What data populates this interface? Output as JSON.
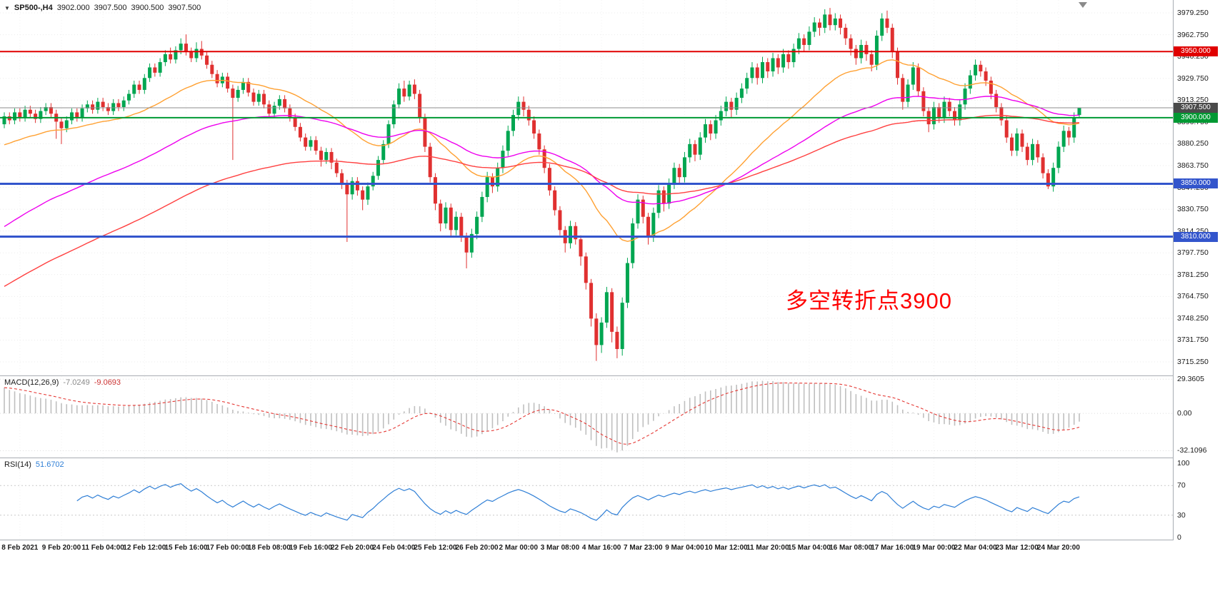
{
  "header": {
    "menu_icon": "▼",
    "title": "SP500-,H4",
    "open": "3902.000",
    "high": "3907.500",
    "low": "3900.500",
    "close": "3907.500"
  },
  "annotation": {
    "text": "多空转折点3900",
    "color": "#FF0000"
  },
  "price_axis": {
    "scale_labels": [
      3979.25,
      3962.75,
      3946.25,
      3929.75,
      3913.25,
      3896.75,
      3880.25,
      3863.75,
      3847.25,
      3830.75,
      3814.25,
      3797.75,
      3781.25,
      3764.75,
      3748.25,
      3731.75,
      3715.25
    ]
  },
  "chart_data": {
    "type": "candlestick",
    "symbol": "SP500-",
    "timeframe": "H4",
    "current_ohlc": {
      "open": 3902.0,
      "high": 3907.5,
      "low": 3900.5,
      "close": 3907.5
    },
    "price_scale": {
      "ylim_top": 3989,
      "ylim_bottom": 3705
    },
    "colors": {
      "up": "#00A651",
      "down": "#E03030",
      "grid_h": "#ebebeb",
      "grid_v": "#f2f2f2",
      "bg": "#ffffff"
    },
    "levels": [
      {
        "price": 3950,
        "label": "3950.000",
        "color": "#E00000",
        "thickness": 2
      },
      {
        "price": 3900,
        "label": "3900.000",
        "color": "#009933",
        "thickness": 2
      },
      {
        "price": 3850,
        "label": "3850.000",
        "color": "#3355CC",
        "thickness": 3
      },
      {
        "price": 3810,
        "label": "3810.000",
        "color": "#3355CC",
        "thickness": 3
      }
    ],
    "bid": {
      "price": 3907.5,
      "label": "3907.500",
      "line_color": "#8c8c8c",
      "tag_color": "#4a4a4a"
    },
    "moving_averages": [
      {
        "name": "MA-fast-orange",
        "period": 30,
        "seed": 3878,
        "color": "#FFA133"
      },
      {
        "name": "MA-mid-magenta",
        "period": 65,
        "seed": 3815,
        "color": "#EE00EE"
      },
      {
        "name": "MA-slow-red",
        "period": 110,
        "seed": 3770,
        "color": "#FF4040"
      }
    ],
    "macd": {
      "name": "MACD(12,26,9)",
      "value_main": "-7.0249",
      "value_signal": "-9.0693",
      "params": [
        12,
        26,
        9
      ],
      "seed_fast": 3902,
      "seed_slow": 3878,
      "range": [
        -38,
        32
      ],
      "axis_values": [
        29.3605,
        0,
        -32.1096
      ],
      "axis_labels": [
        "29.3605",
        "0.00",
        "-32.1096"
      ],
      "histogram_color": "#bfbfbf",
      "signal_color": "#E53935"
    },
    "rsi": {
      "name": "RSI(14)",
      "value": "51.6702",
      "period": 14,
      "range": [
        0,
        100
      ],
      "levels": [
        70,
        30
      ],
      "axis_values": [
        100,
        70,
        30,
        0
      ],
      "axis_labels": [
        "100",
        "70",
        "30",
        "0"
      ],
      "line_color": "#2f7fd6",
      "level_color": "#c9c9c9"
    },
    "time_labels": [
      "8 Feb 2021",
      "9 Feb 20:00",
      "11 Feb 04:00",
      "12 Feb 12:00",
      "15 Feb 16:00",
      "17 Feb 00:00",
      "18 Feb 08:00",
      "19 Feb 16:00",
      "22 Feb 20:00",
      "24 Feb 04:00",
      "25 Feb 12:00",
      "26 Feb 20:00",
      "2 Mar 00:00",
      "3 Mar 08:00",
      "4 Mar 16:00",
      "7 Mar 23:00",
      "9 Mar 04:00",
      "10 Mar 12:00",
      "11 Mar 20:00",
      "15 Mar 04:00",
      "16 Mar 08:00",
      "17 Mar 16:00",
      "19 Mar 00:00",
      "22 Mar 04:00",
      "23 Mar 12:00",
      "24 Mar 20:00"
    ],
    "candles_per_time_label": 8,
    "first_label_candle_index": 3,
    "candles": [
      [
        3895,
        3904,
        3892,
        3901
      ],
      [
        3901,
        3904,
        3895,
        3898
      ],
      [
        3898,
        3907,
        3895,
        3904
      ],
      [
        3904,
        3907,
        3897,
        3900
      ],
      [
        3900,
        3909,
        3897,
        3906
      ],
      [
        3906,
        3909,
        3900,
        3903
      ],
      [
        3903,
        3906,
        3896,
        3899
      ],
      [
        3899,
        3908,
        3896,
        3905
      ],
      [
        3905,
        3911,
        3902,
        3908
      ],
      [
        3908,
        3911,
        3900,
        3903
      ],
      [
        3903,
        3906,
        3884,
        3897
      ],
      [
        3897,
        3900,
        3880,
        3892
      ],
      [
        3892,
        3901,
        3889,
        3898
      ],
      [
        3898,
        3907,
        3895,
        3904
      ],
      [
        3904,
        3907,
        3897,
        3900
      ],
      [
        3900,
        3910,
        3897,
        3907
      ],
      [
        3907,
        3913,
        3904,
        3910
      ],
      [
        3910,
        3913,
        3903,
        3906
      ],
      [
        3906,
        3915,
        3903,
        3912
      ],
      [
        3912,
        3915,
        3905,
        3908
      ],
      [
        3908,
        3911,
        3902,
        3905
      ],
      [
        3905,
        3914,
        3902,
        3911
      ],
      [
        3911,
        3914,
        3905,
        3908
      ],
      [
        3908,
        3916,
        3905,
        3913
      ],
      [
        3913,
        3921,
        3910,
        3918
      ],
      [
        3918,
        3928,
        3915,
        3925
      ],
      [
        3925,
        3928,
        3918,
        3921
      ],
      [
        3921,
        3933,
        3918,
        3930
      ],
      [
        3930,
        3941,
        3927,
        3938
      ],
      [
        3938,
        3941,
        3931,
        3934
      ],
      [
        3934,
        3945,
        3931,
        3942
      ],
      [
        3942,
        3951,
        3939,
        3948
      ],
      [
        3948,
        3953,
        3941,
        3944
      ],
      [
        3944,
        3954,
        3941,
        3951
      ],
      [
        3951,
        3960,
        3948,
        3956
      ],
      [
        3956,
        3963,
        3947,
        3950
      ],
      [
        3950,
        3953,
        3942,
        3945
      ],
      [
        3945,
        3957,
        3942,
        3952
      ],
      [
        3952,
        3958,
        3944,
        3947
      ],
      [
        3947,
        3950,
        3937,
        3940
      ],
      [
        3940,
        3943,
        3930,
        3933
      ],
      [
        3933,
        3936,
        3923,
        3926
      ],
      [
        3926,
        3934,
        3923,
        3931
      ],
      [
        3931,
        3934,
        3919,
        3922
      ],
      [
        3922,
        3925,
        3868,
        3915
      ],
      [
        3915,
        3924,
        3912,
        3921
      ],
      [
        3921,
        3930,
        3918,
        3927
      ],
      [
        3927,
        3930,
        3916,
        3919
      ],
      [
        3919,
        3922,
        3909,
        3912
      ],
      [
        3912,
        3921,
        3909,
        3918
      ],
      [
        3918,
        3921,
        3907,
        3910
      ],
      [
        3910,
        3913,
        3900,
        3903
      ],
      [
        3903,
        3912,
        3900,
        3909
      ],
      [
        3909,
        3917,
        3906,
        3914
      ],
      [
        3914,
        3917,
        3904,
        3907
      ],
      [
        3907,
        3910,
        3897,
        3900
      ],
      [
        3900,
        3903,
        3890,
        3893
      ],
      [
        3893,
        3896,
        3882,
        3885
      ],
      [
        3885,
        3888,
        3875,
        3878
      ],
      [
        3878,
        3886,
        3875,
        3883
      ],
      [
        3883,
        3886,
        3872,
        3875
      ],
      [
        3875,
        3878,
        3863,
        3868
      ],
      [
        3868,
        3877,
        3865,
        3874
      ],
      [
        3874,
        3877,
        3861,
        3866
      ],
      [
        3866,
        3869,
        3855,
        3858
      ],
      [
        3858,
        3861,
        3846,
        3850
      ],
      [
        3850,
        3853,
        3806,
        3842
      ],
      [
        3842,
        3855,
        3838,
        3852
      ],
      [
        3852,
        3855,
        3841,
        3845
      ],
      [
        3845,
        3848,
        3830,
        3838
      ],
      [
        3838,
        3851,
        3834,
        3848
      ],
      [
        3848,
        3859,
        3845,
        3856
      ],
      [
        3856,
        3871,
        3853,
        3868
      ],
      [
        3868,
        3883,
        3865,
        3880
      ],
      [
        3880,
        3898,
        3877,
        3895
      ],
      [
        3895,
        3913,
        3892,
        3910
      ],
      [
        3910,
        3926,
        3907,
        3922
      ],
      [
        3922,
        3928,
        3912,
        3916
      ],
      [
        3916,
        3928,
        3913,
        3925
      ],
      [
        3925,
        3929,
        3914,
        3918
      ],
      [
        3918,
        3921,
        3896,
        3900
      ],
      [
        3900,
        3903,
        3874,
        3878
      ],
      [
        3878,
        3881,
        3851,
        3855
      ],
      [
        3855,
        3858,
        3830,
        3835
      ],
      [
        3835,
        3838,
        3814,
        3820
      ],
      [
        3820,
        3836,
        3816,
        3832
      ],
      [
        3832,
        3835,
        3810,
        3815
      ],
      [
        3815,
        3829,
        3811,
        3825
      ],
      [
        3825,
        3828,
        3806,
        3810
      ],
      [
        3810,
        3813,
        3786,
        3798
      ],
      [
        3798,
        3816,
        3794,
        3812
      ],
      [
        3812,
        3829,
        3808,
        3825
      ],
      [
        3825,
        3844,
        3821,
        3840
      ],
      [
        3840,
        3859,
        3836,
        3855
      ],
      [
        3855,
        3858,
        3843,
        3848
      ],
      [
        3848,
        3866,
        3844,
        3862
      ],
      [
        3862,
        3879,
        3858,
        3875
      ],
      [
        3875,
        3894,
        3871,
        3890
      ],
      [
        3890,
        3906,
        3886,
        3902
      ],
      [
        3902,
        3916,
        3898,
        3912
      ],
      [
        3912,
        3916,
        3901,
        3906
      ],
      [
        3906,
        3909,
        3894,
        3898
      ],
      [
        3898,
        3901,
        3884,
        3888
      ],
      [
        3888,
        3891,
        3872,
        3876
      ],
      [
        3876,
        3879,
        3858,
        3862
      ],
      [
        3862,
        3865,
        3841,
        3845
      ],
      [
        3845,
        3848,
        3826,
        3830
      ],
      [
        3830,
        3833,
        3811,
        3815
      ],
      [
        3815,
        3818,
        3798,
        3805
      ],
      [
        3805,
        3822,
        3801,
        3818
      ],
      [
        3818,
        3821,
        3804,
        3808
      ],
      [
        3808,
        3811,
        3788,
        3795
      ],
      [
        3795,
        3798,
        3770,
        3775
      ],
      [
        3775,
        3778,
        3742,
        3748
      ],
      [
        3748,
        3752,
        3716,
        3728
      ],
      [
        3728,
        3749,
        3722,
        3745
      ],
      [
        3745,
        3772,
        3741,
        3768
      ],
      [
        3768,
        3771,
        3730,
        3738
      ],
      [
        3738,
        3742,
        3718,
        3725
      ],
      [
        3725,
        3764,
        3720,
        3760
      ],
      [
        3760,
        3794,
        3756,
        3790
      ],
      [
        3790,
        3824,
        3786,
        3820
      ],
      [
        3820,
        3842,
        3816,
        3838
      ],
      [
        3838,
        3841,
        3820,
        3825
      ],
      [
        3825,
        3828,
        3804,
        3810
      ],
      [
        3810,
        3832,
        3806,
        3828
      ],
      [
        3828,
        3849,
        3824,
        3845
      ],
      [
        3845,
        3848,
        3829,
        3835
      ],
      [
        3835,
        3854,
        3831,
        3850
      ],
      [
        3850,
        3866,
        3846,
        3862
      ],
      [
        3862,
        3865,
        3850,
        3855
      ],
      [
        3855,
        3874,
        3851,
        3870
      ],
      [
        3870,
        3884,
        3866,
        3880
      ],
      [
        3880,
        3883,
        3867,
        3872
      ],
      [
        3872,
        3889,
        3868,
        3885
      ],
      [
        3885,
        3899,
        3881,
        3895
      ],
      [
        3895,
        3898,
        3883,
        3888
      ],
      [
        3888,
        3902,
        3884,
        3898
      ],
      [
        3898,
        3909,
        3894,
        3905
      ],
      [
        3905,
        3916,
        3901,
        3912
      ],
      [
        3912,
        3915,
        3900,
        3906
      ],
      [
        3906,
        3919,
        3902,
        3915
      ],
      [
        3915,
        3926,
        3911,
        3922
      ],
      [
        3922,
        3934,
        3918,
        3930
      ],
      [
        3930,
        3942,
        3926,
        3938
      ],
      [
        3938,
        3941,
        3925,
        3930
      ],
      [
        3930,
        3946,
        3926,
        3942
      ],
      [
        3942,
        3945,
        3930,
        3935
      ],
      [
        3935,
        3949,
        3931,
        3945
      ],
      [
        3945,
        3948,
        3933,
        3938
      ],
      [
        3938,
        3952,
        3934,
        3948
      ],
      [
        3948,
        3951,
        3937,
        3942
      ],
      [
        3942,
        3956,
        3938,
        3952
      ],
      [
        3952,
        3964,
        3948,
        3960
      ],
      [
        3960,
        3963,
        3950,
        3955
      ],
      [
        3955,
        3969,
        3951,
        3965
      ],
      [
        3965,
        3976,
        3961,
        3972
      ],
      [
        3972,
        3975,
        3962,
        3968
      ],
      [
        3968,
        3982,
        3964,
        3978
      ],
      [
        3978,
        3983,
        3966,
        3970
      ],
      [
        3970,
        3979,
        3966,
        3975
      ],
      [
        3975,
        3978,
        3963,
        3968
      ],
      [
        3968,
        3971,
        3955,
        3960
      ],
      [
        3960,
        3963,
        3947,
        3952
      ],
      [
        3952,
        3955,
        3940,
        3945
      ],
      [
        3945,
        3959,
        3941,
        3955
      ],
      [
        3955,
        3958,
        3943,
        3948
      ],
      [
        3948,
        3951,
        3935,
        3940
      ],
      [
        3940,
        3966,
        3936,
        3962
      ],
      [
        3962,
        3979,
        3958,
        3975
      ],
      [
        3975,
        3981,
        3964,
        3968
      ],
      [
        3968,
        3971,
        3945,
        3950
      ],
      [
        3950,
        3953,
        3925,
        3930
      ],
      [
        3930,
        3933,
        3906,
        3912
      ],
      [
        3912,
        3929,
        3908,
        3925
      ],
      [
        3925,
        3942,
        3921,
        3938
      ],
      [
        3938,
        3941,
        3916,
        3920
      ],
      [
        3920,
        3923,
        3901,
        3905
      ],
      [
        3905,
        3908,
        3889,
        3895
      ],
      [
        3895,
        3912,
        3891,
        3908
      ],
      [
        3908,
        3911,
        3896,
        3900
      ],
      [
        3900,
        3916,
        3896,
        3912
      ],
      [
        3912,
        3915,
        3901,
        3905
      ],
      [
        3905,
        3908,
        3894,
        3898
      ],
      [
        3898,
        3914,
        3894,
        3910
      ],
      [
        3910,
        3926,
        3906,
        3922
      ],
      [
        3922,
        3936,
        3918,
        3932
      ],
      [
        3932,
        3944,
        3928,
        3940
      ],
      [
        3940,
        3943,
        3931,
        3935
      ],
      [
        3935,
        3938,
        3924,
        3928
      ],
      [
        3928,
        3931,
        3914,
        3918
      ],
      [
        3918,
        3921,
        3904,
        3908
      ],
      [
        3908,
        3911,
        3894,
        3898
      ],
      [
        3898,
        3901,
        3881,
        3885
      ],
      [
        3885,
        3888,
        3871,
        3875
      ],
      [
        3875,
        3892,
        3871,
        3888
      ],
      [
        3888,
        3891,
        3874,
        3878
      ],
      [
        3878,
        3881,
        3864,
        3868
      ],
      [
        3868,
        3884,
        3864,
        3880
      ],
      [
        3880,
        3883,
        3866,
        3870
      ],
      [
        3870,
        3873,
        3854,
        3858
      ],
      [
        3858,
        3861,
        3846,
        3848
      ],
      [
        3848,
        3866,
        3844,
        3862
      ],
      [
        3862,
        3882,
        3858,
        3878
      ],
      [
        3878,
        3894,
        3874,
        3890
      ],
      [
        3890,
        3893,
        3879,
        3885
      ],
      [
        3885,
        3904,
        3881,
        3900
      ],
      [
        3902,
        3907.5,
        3900.5,
        3907.5
      ]
    ]
  }
}
